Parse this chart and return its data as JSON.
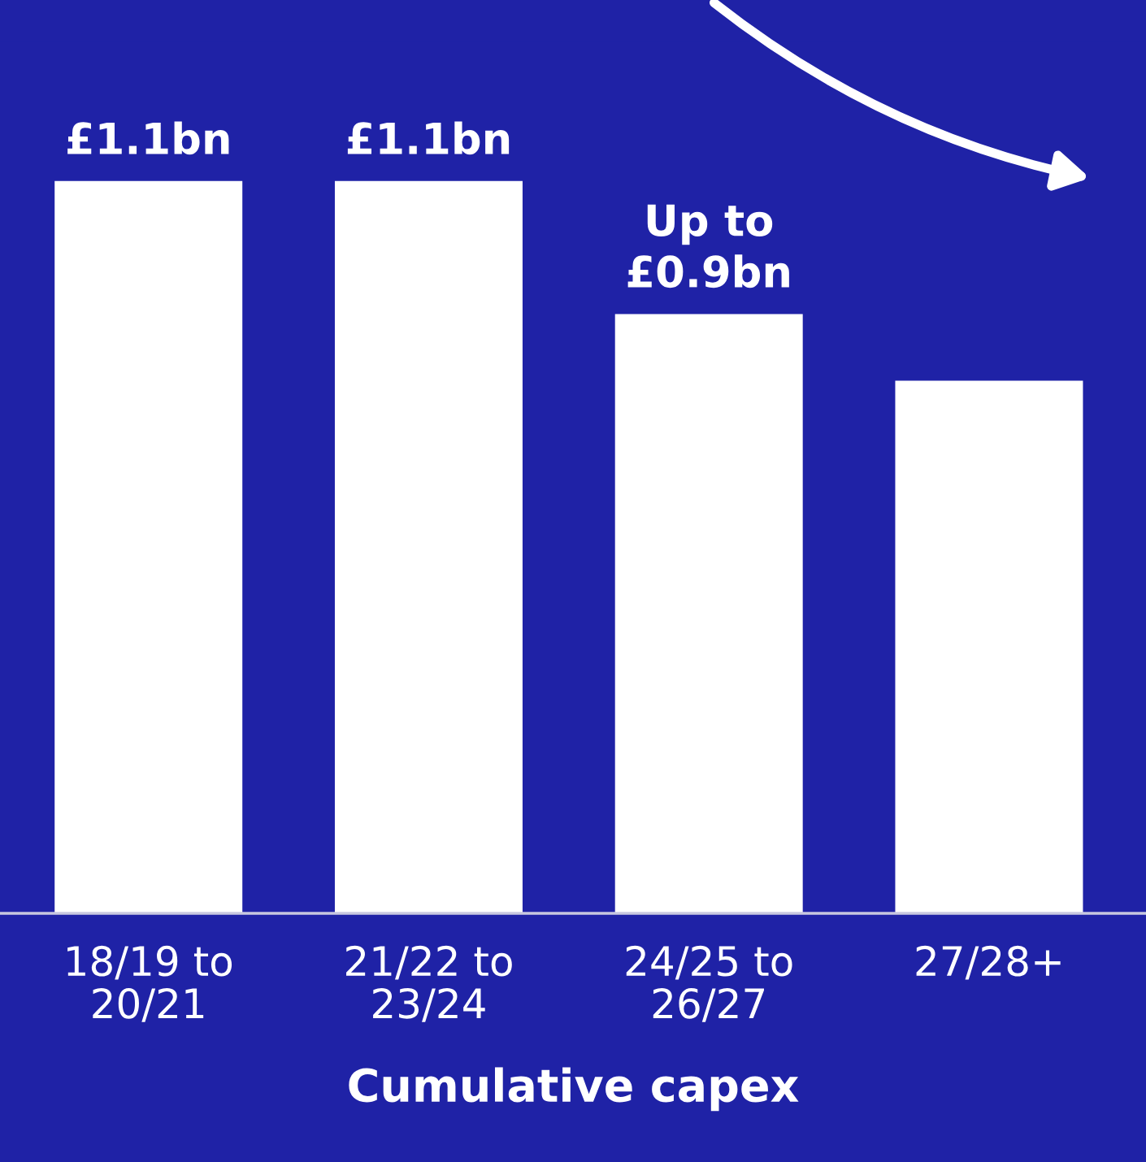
{
  "chart_data": {
    "type": "bar",
    "xlabel": "Cumulative capex",
    "categories": [
      "18/19 to\n20/21",
      "21/22 to\n23/24",
      "24/25 to\n26/27",
      "27/28+"
    ],
    "values": [
      1.1,
      1.1,
      0.9,
      0.8
    ],
    "value_labels": [
      "£1.1bn",
      "£1.1bn",
      "Up to\n£0.9bn",
      null
    ],
    "color": "#ffffff",
    "grid": false,
    "legend": false
  }
}
